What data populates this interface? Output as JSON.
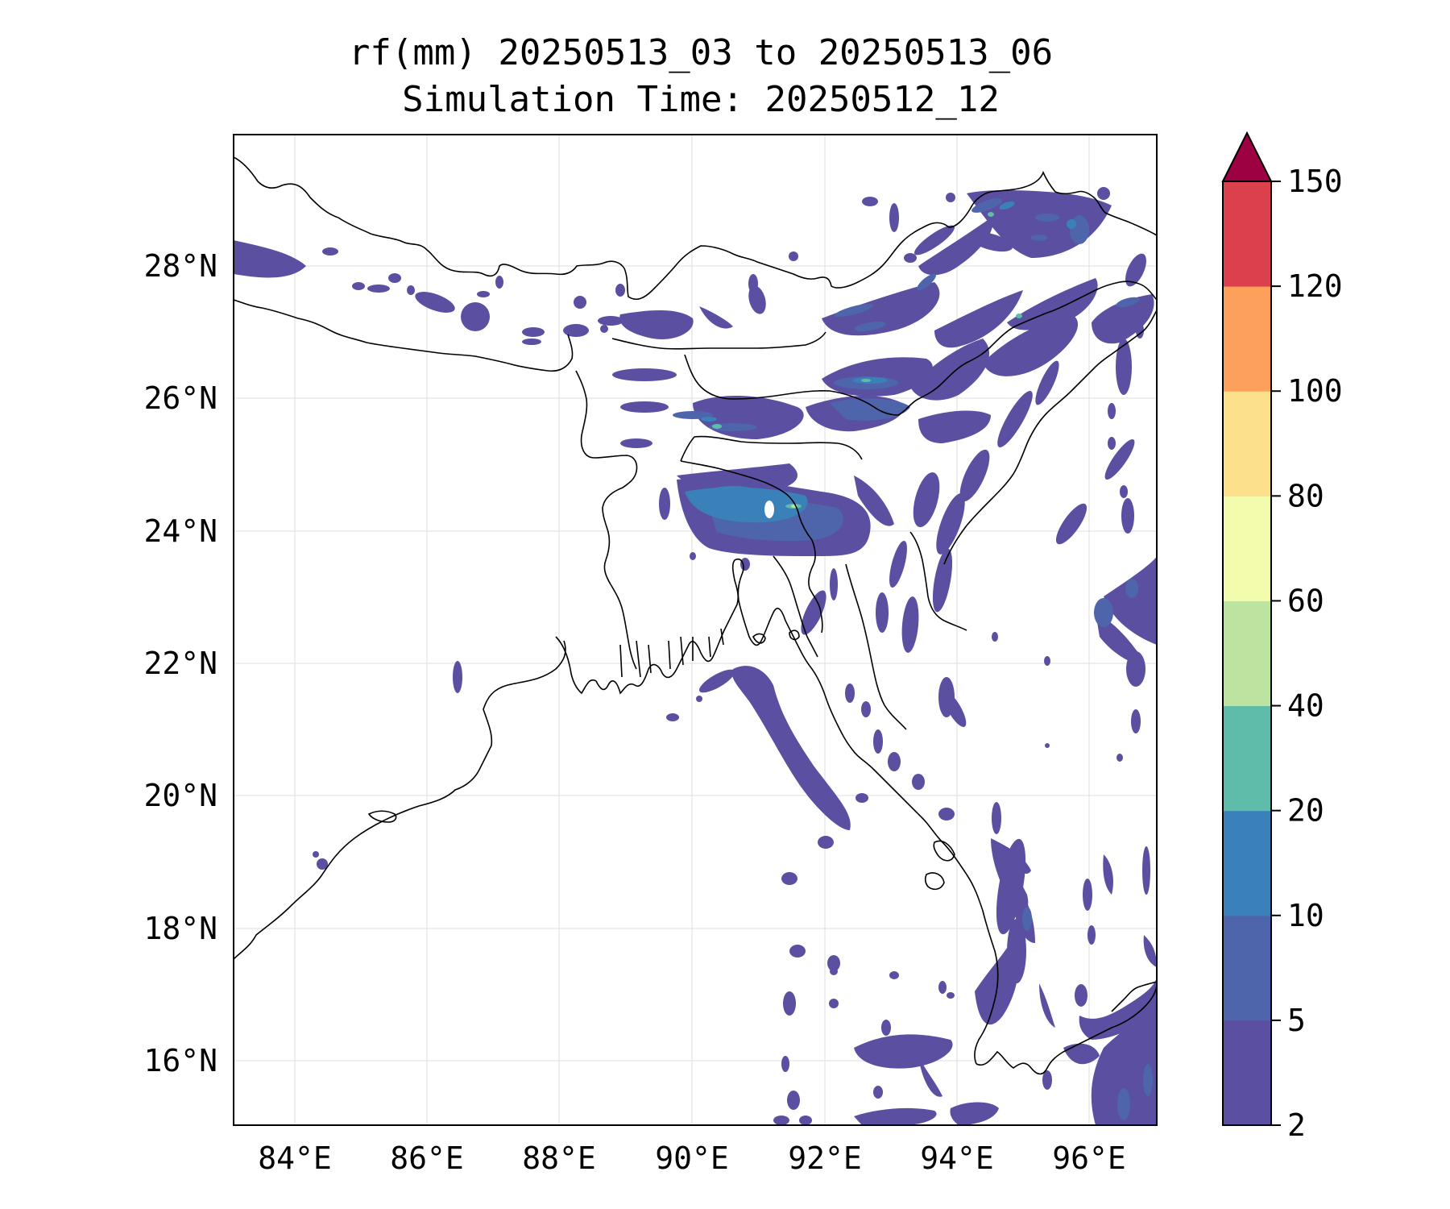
{
  "map": {
    "title_line1": "rf(mm) 20250513_03 to 20250513_06",
    "title_line2": "Simulation Time: 20250512_12",
    "lon_ticks": [
      "84°E",
      "86°E",
      "88°E",
      "90°E",
      "92°E",
      "94°E",
      "96°E"
    ],
    "lat_ticks": [
      "28°N",
      "26°N",
      "24°N",
      "22°N",
      "20°N",
      "18°N",
      "16°N"
    ],
    "extent": {
      "lon": [
        83.1,
        97.0
      ],
      "lat": [
        15.0,
        30.0
      ]
    }
  },
  "colorbar": {
    "levels": [
      2,
      5,
      10,
      20,
      40,
      60,
      80,
      100,
      120,
      150
    ],
    "labels": [
      "2",
      "5",
      "10",
      "20",
      "40",
      "60",
      "80",
      "100",
      "120",
      "150"
    ],
    "colors": [
      "#5a4fa1",
      "#4e65ac",
      "#3a80b9",
      "#60bcaa",
      "#bde3a0",
      "#f3fbac",
      "#fce08b",
      "#fca05c",
      "#da414d",
      "#9e0142"
    ],
    "extend": "max"
  }
}
